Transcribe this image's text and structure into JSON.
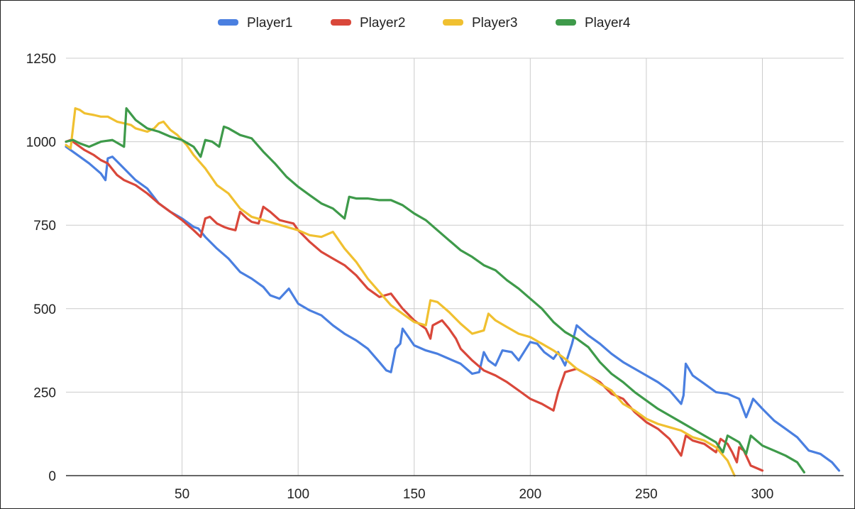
{
  "chart_data": {
    "type": "line",
    "title": "",
    "xlabel": "",
    "ylabel": "",
    "xlim": [
      0,
      335
    ],
    "ylim": [
      0,
      1250
    ],
    "x_ticks": [
      50,
      100,
      150,
      200,
      250,
      300
    ],
    "y_ticks": [
      0,
      250,
      500,
      750,
      1000,
      1250
    ],
    "grid": true,
    "legend": "top-center",
    "series": [
      {
        "name": "Player1",
        "color": "#4a7fe0",
        "points": [
          [
            0,
            985
          ],
          [
            5,
            960
          ],
          [
            10,
            935
          ],
          [
            15,
            905
          ],
          [
            17,
            885
          ],
          [
            18,
            950
          ],
          [
            20,
            955
          ],
          [
            25,
            920
          ],
          [
            30,
            885
          ],
          [
            35,
            860
          ],
          [
            40,
            815
          ],
          [
            45,
            790
          ],
          [
            50,
            770
          ],
          [
            55,
            745
          ],
          [
            57,
            740
          ],
          [
            60,
            715
          ],
          [
            65,
            680
          ],
          [
            70,
            650
          ],
          [
            75,
            610
          ],
          [
            80,
            590
          ],
          [
            85,
            565
          ],
          [
            88,
            540
          ],
          [
            92,
            530
          ],
          [
            96,
            560
          ],
          [
            100,
            515
          ],
          [
            105,
            495
          ],
          [
            110,
            480
          ],
          [
            115,
            450
          ],
          [
            120,
            425
          ],
          [
            125,
            405
          ],
          [
            130,
            380
          ],
          [
            135,
            340
          ],
          [
            138,
            315
          ],
          [
            140,
            310
          ],
          [
            142,
            380
          ],
          [
            144,
            395
          ],
          [
            145,
            440
          ],
          [
            148,
            410
          ],
          [
            150,
            390
          ],
          [
            155,
            375
          ],
          [
            160,
            365
          ],
          [
            165,
            350
          ],
          [
            170,
            335
          ],
          [
            175,
            305
          ],
          [
            178,
            310
          ],
          [
            180,
            370
          ],
          [
            182,
            345
          ],
          [
            185,
            330
          ],
          [
            188,
            375
          ],
          [
            192,
            370
          ],
          [
            195,
            345
          ],
          [
            200,
            400
          ],
          [
            203,
            395
          ],
          [
            206,
            370
          ],
          [
            210,
            350
          ],
          [
            212,
            370
          ],
          [
            215,
            330
          ],
          [
            218,
            395
          ],
          [
            220,
            450
          ],
          [
            225,
            420
          ],
          [
            230,
            395
          ],
          [
            235,
            365
          ],
          [
            240,
            340
          ],
          [
            245,
            320
          ],
          [
            250,
            300
          ],
          [
            255,
            280
          ],
          [
            260,
            255
          ],
          [
            265,
            215
          ],
          [
            266,
            240
          ],
          [
            267,
            335
          ],
          [
            270,
            300
          ],
          [
            275,
            275
          ],
          [
            280,
            250
          ],
          [
            285,
            245
          ],
          [
            290,
            230
          ],
          [
            293,
            175
          ],
          [
            295,
            210
          ],
          [
            296,
            230
          ],
          [
            300,
            200
          ],
          [
            305,
            165
          ],
          [
            310,
            140
          ],
          [
            315,
            115
          ],
          [
            320,
            75
          ],
          [
            325,
            65
          ],
          [
            330,
            40
          ],
          [
            333,
            15
          ]
        ]
      },
      {
        "name": "Player2",
        "color": "#d9473a",
        "points": [
          [
            0,
            1000
          ],
          [
            2,
            1005
          ],
          [
            4,
            995
          ],
          [
            8,
            975
          ],
          [
            12,
            960
          ],
          [
            15,
            945
          ],
          [
            18,
            935
          ],
          [
            22,
            900
          ],
          [
            25,
            885
          ],
          [
            30,
            870
          ],
          [
            35,
            845
          ],
          [
            40,
            815
          ],
          [
            45,
            790
          ],
          [
            50,
            765
          ],
          [
            55,
            735
          ],
          [
            58,
            715
          ],
          [
            60,
            770
          ],
          [
            62,
            775
          ],
          [
            65,
            755
          ],
          [
            68,
            745
          ],
          [
            70,
            740
          ],
          [
            73,
            735
          ],
          [
            75,
            790
          ],
          [
            78,
            770
          ],
          [
            80,
            760
          ],
          [
            83,
            755
          ],
          [
            85,
            805
          ],
          [
            88,
            790
          ],
          [
            92,
            765
          ],
          [
            95,
            760
          ],
          [
            98,
            755
          ],
          [
            100,
            735
          ],
          [
            105,
            700
          ],
          [
            110,
            670
          ],
          [
            115,
            650
          ],
          [
            120,
            630
          ],
          [
            125,
            600
          ],
          [
            130,
            560
          ],
          [
            135,
            535
          ],
          [
            140,
            545
          ],
          [
            145,
            500
          ],
          [
            150,
            465
          ],
          [
            155,
            440
          ],
          [
            157,
            410
          ],
          [
            158,
            450
          ],
          [
            162,
            465
          ],
          [
            165,
            440
          ],
          [
            168,
            410
          ],
          [
            170,
            380
          ],
          [
            175,
            345
          ],
          [
            180,
            315
          ],
          [
            185,
            300
          ],
          [
            190,
            280
          ],
          [
            195,
            255
          ],
          [
            200,
            230
          ],
          [
            205,
            215
          ],
          [
            210,
            195
          ],
          [
            212,
            250
          ],
          [
            215,
            310
          ],
          [
            220,
            320
          ],
          [
            225,
            300
          ],
          [
            230,
            280
          ],
          [
            235,
            245
          ],
          [
            240,
            230
          ],
          [
            245,
            190
          ],
          [
            250,
            160
          ],
          [
            255,
            140
          ],
          [
            260,
            110
          ],
          [
            265,
            60
          ],
          [
            267,
            120
          ],
          [
            270,
            105
          ],
          [
            275,
            95
          ],
          [
            280,
            70
          ],
          [
            282,
            110
          ],
          [
            285,
            95
          ],
          [
            287,
            70
          ],
          [
            289,
            40
          ],
          [
            290,
            85
          ],
          [
            292,
            75
          ],
          [
            295,
            30
          ],
          [
            300,
            15
          ]
        ]
      },
      {
        "name": "Player3",
        "color": "#f0c030",
        "points": [
          [
            0,
            990
          ],
          [
            2,
            980
          ],
          [
            4,
            1100
          ],
          [
            6,
            1095
          ],
          [
            8,
            1085
          ],
          [
            12,
            1080
          ],
          [
            15,
            1075
          ],
          [
            18,
            1075
          ],
          [
            22,
            1060
          ],
          [
            25,
            1055
          ],
          [
            28,
            1050
          ],
          [
            30,
            1040
          ],
          [
            35,
            1030
          ],
          [
            38,
            1040
          ],
          [
            40,
            1055
          ],
          [
            42,
            1060
          ],
          [
            45,
            1035
          ],
          [
            48,
            1020
          ],
          [
            52,
            990
          ],
          [
            55,
            960
          ],
          [
            60,
            920
          ],
          [
            65,
            870
          ],
          [
            70,
            845
          ],
          [
            75,
            800
          ],
          [
            80,
            775
          ],
          [
            85,
            765
          ],
          [
            90,
            755
          ],
          [
            95,
            745
          ],
          [
            100,
            735
          ],
          [
            105,
            720
          ],
          [
            110,
            715
          ],
          [
            115,
            730
          ],
          [
            120,
            680
          ],
          [
            125,
            640
          ],
          [
            130,
            590
          ],
          [
            135,
            550
          ],
          [
            140,
            510
          ],
          [
            145,
            485
          ],
          [
            150,
            460
          ],
          [
            155,
            450
          ],
          [
            157,
            525
          ],
          [
            160,
            520
          ],
          [
            165,
            490
          ],
          [
            170,
            455
          ],
          [
            175,
            425
          ],
          [
            180,
            435
          ],
          [
            182,
            485
          ],
          [
            185,
            465
          ],
          [
            190,
            445
          ],
          [
            195,
            425
          ],
          [
            200,
            415
          ],
          [
            205,
            395
          ],
          [
            210,
            375
          ],
          [
            215,
            350
          ],
          [
            220,
            320
          ],
          [
            225,
            300
          ],
          [
            230,
            275
          ],
          [
            235,
            255
          ],
          [
            240,
            215
          ],
          [
            245,
            195
          ],
          [
            250,
            170
          ],
          [
            255,
            155
          ],
          [
            260,
            145
          ],
          [
            265,
            135
          ],
          [
            270,
            115
          ],
          [
            275,
            105
          ],
          [
            280,
            85
          ],
          [
            285,
            45
          ],
          [
            288,
            0
          ]
        ]
      },
      {
        "name": "Player4",
        "color": "#3e9a4a",
        "points": [
          [
            0,
            1000
          ],
          [
            3,
            1005
          ],
          [
            6,
            995
          ],
          [
            10,
            985
          ],
          [
            15,
            1000
          ],
          [
            20,
            1005
          ],
          [
            25,
            985
          ],
          [
            26,
            1100
          ],
          [
            30,
            1065
          ],
          [
            35,
            1040
          ],
          [
            40,
            1030
          ],
          [
            45,
            1015
          ],
          [
            50,
            1005
          ],
          [
            55,
            985
          ],
          [
            58,
            955
          ],
          [
            60,
            1005
          ],
          [
            63,
            1000
          ],
          [
            66,
            985
          ],
          [
            68,
            1045
          ],
          [
            70,
            1040
          ],
          [
            75,
            1020
          ],
          [
            80,
            1010
          ],
          [
            85,
            970
          ],
          [
            90,
            935
          ],
          [
            95,
            895
          ],
          [
            100,
            865
          ],
          [
            105,
            840
          ],
          [
            110,
            815
          ],
          [
            115,
            800
          ],
          [
            120,
            770
          ],
          [
            122,
            835
          ],
          [
            125,
            830
          ],
          [
            130,
            830
          ],
          [
            135,
            825
          ],
          [
            140,
            825
          ],
          [
            145,
            810
          ],
          [
            150,
            785
          ],
          [
            155,
            765
          ],
          [
            160,
            735
          ],
          [
            165,
            705
          ],
          [
            170,
            675
          ],
          [
            175,
            655
          ],
          [
            180,
            630
          ],
          [
            185,
            615
          ],
          [
            190,
            585
          ],
          [
            195,
            560
          ],
          [
            200,
            530
          ],
          [
            205,
            500
          ],
          [
            210,
            460
          ],
          [
            215,
            430
          ],
          [
            220,
            410
          ],
          [
            225,
            385
          ],
          [
            230,
            340
          ],
          [
            235,
            305
          ],
          [
            240,
            280
          ],
          [
            245,
            250
          ],
          [
            250,
            225
          ],
          [
            255,
            200
          ],
          [
            260,
            180
          ],
          [
            265,
            160
          ],
          [
            270,
            140
          ],
          [
            275,
            120
          ],
          [
            280,
            100
          ],
          [
            283,
            70
          ],
          [
            285,
            120
          ],
          [
            290,
            100
          ],
          [
            293,
            65
          ],
          [
            295,
            120
          ],
          [
            300,
            90
          ],
          [
            305,
            75
          ],
          [
            310,
            60
          ],
          [
            315,
            40
          ],
          [
            318,
            10
          ]
        ]
      }
    ]
  }
}
